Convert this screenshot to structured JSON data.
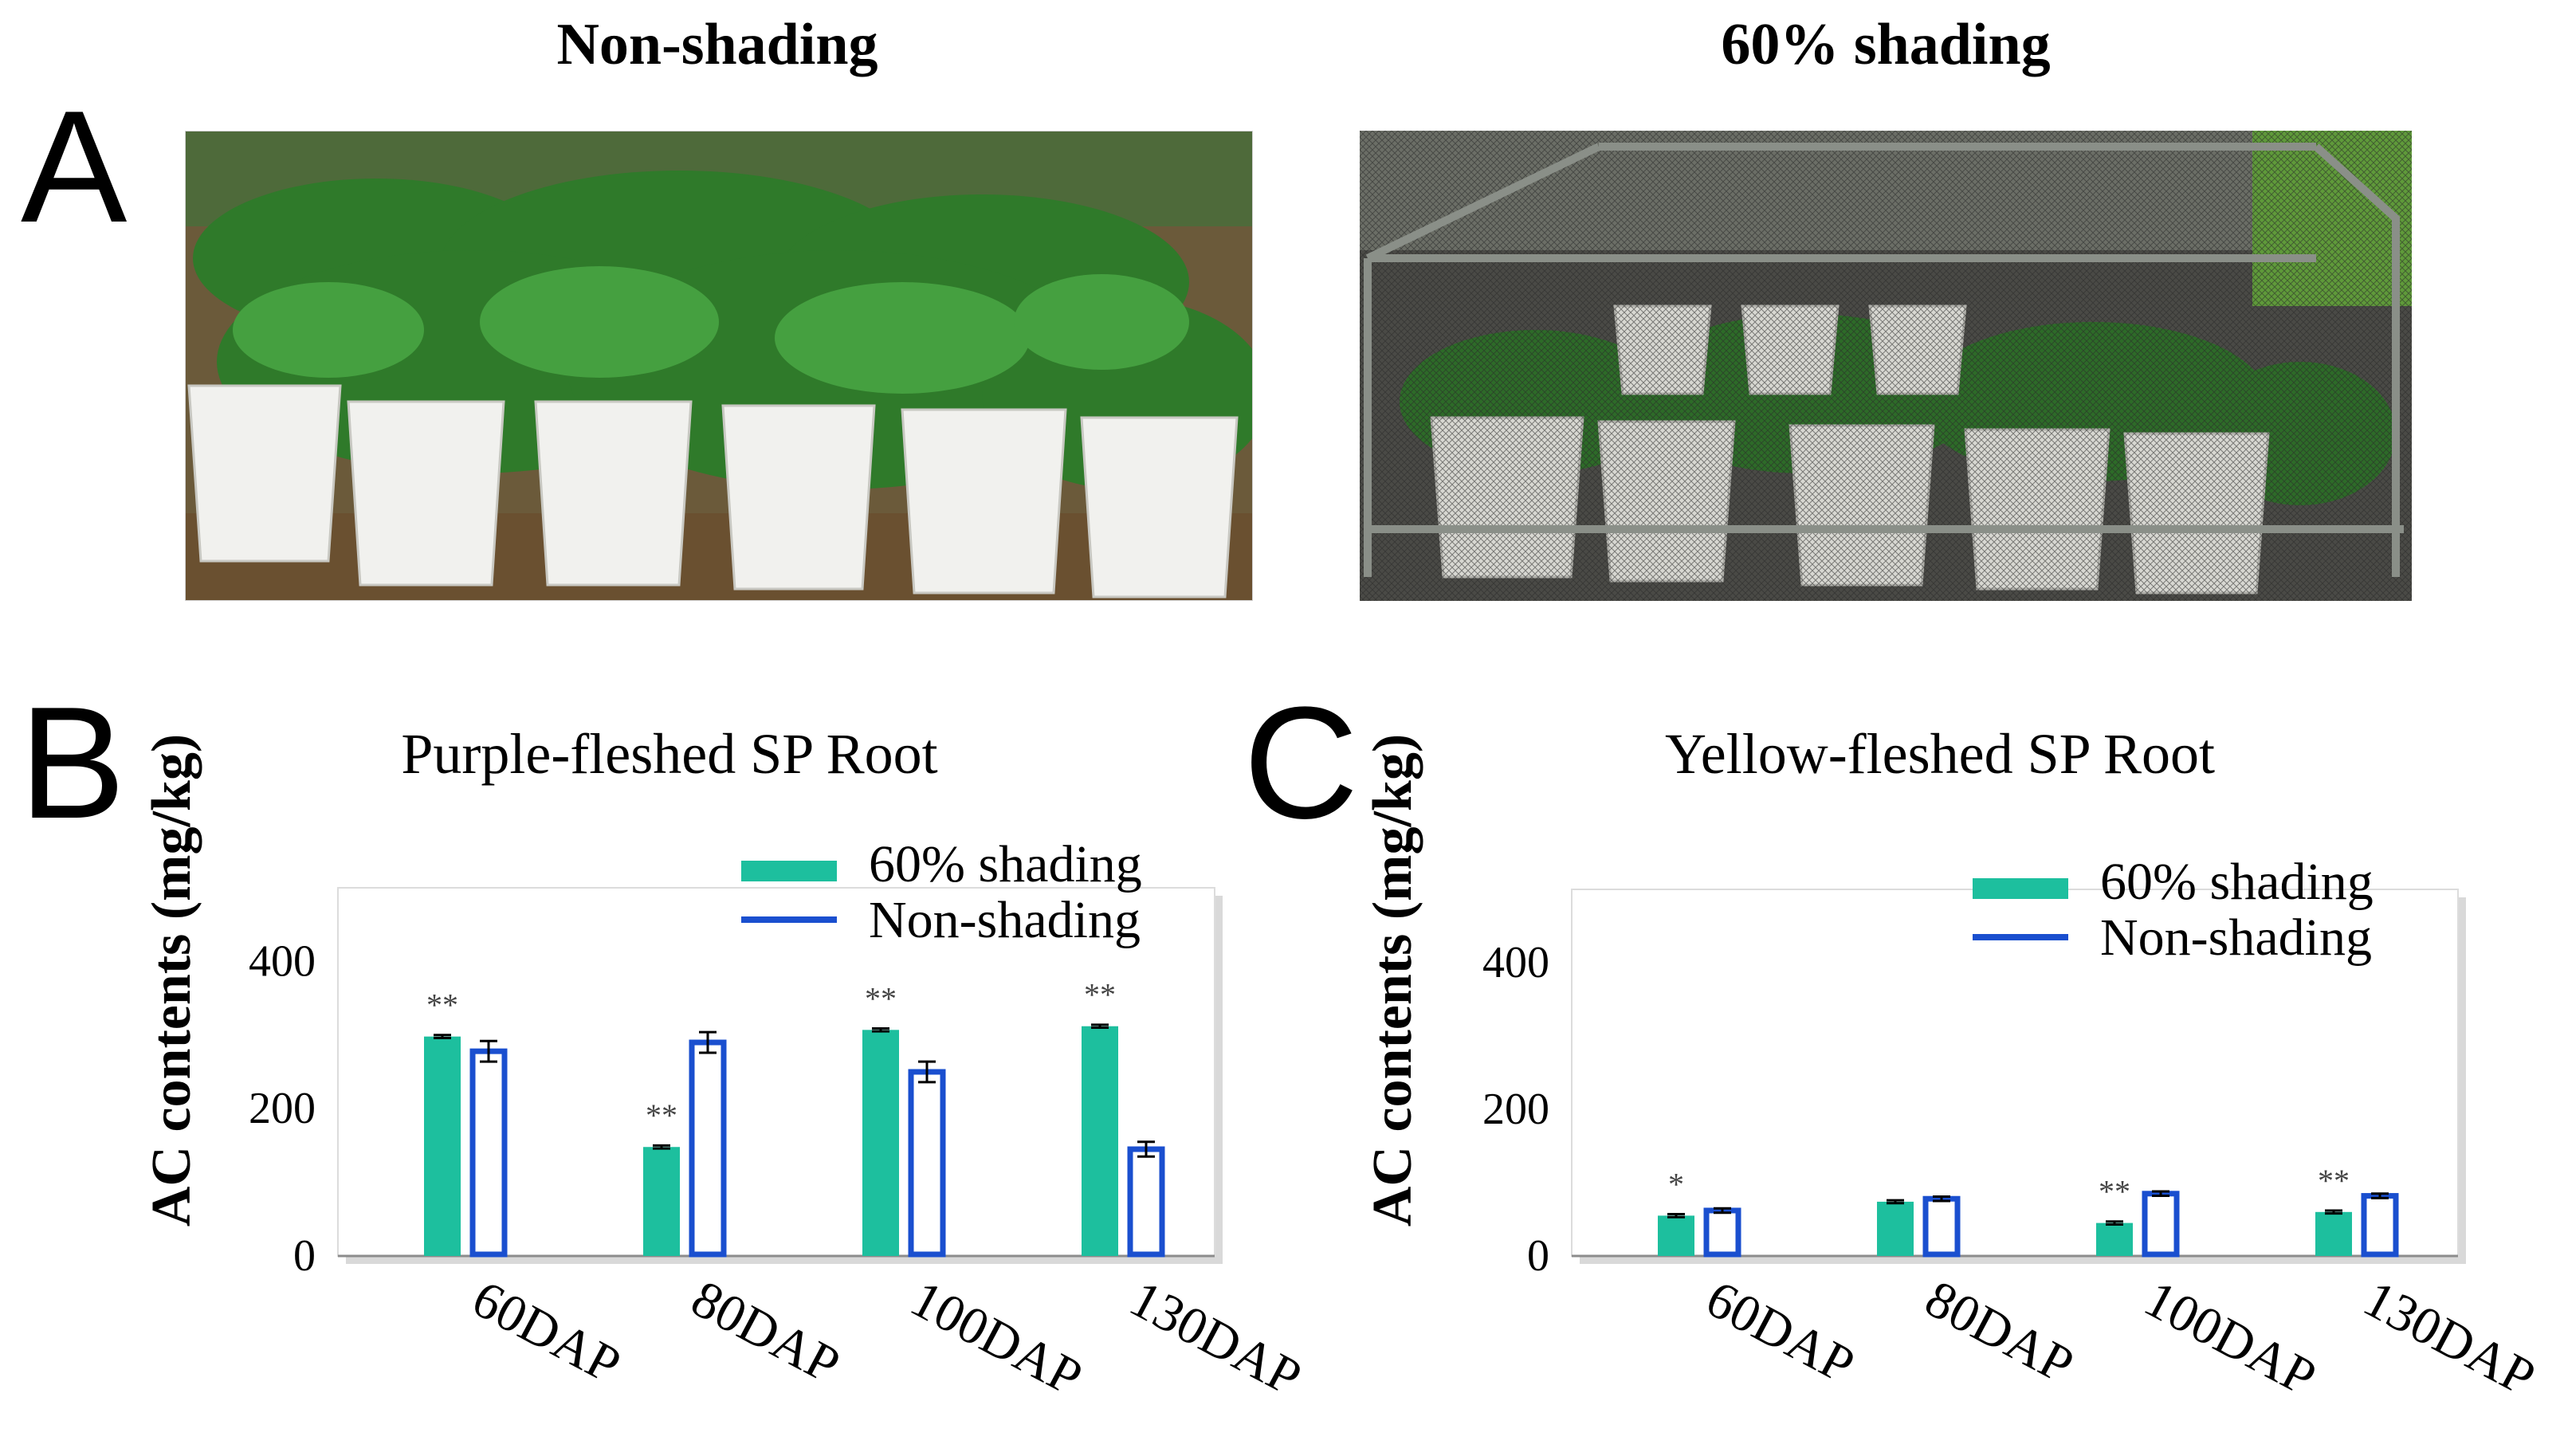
{
  "panels": {
    "a": {
      "letter": "A",
      "left_title": "Non-shading",
      "right_title": "60% shading"
    },
    "b": {
      "letter": "B"
    },
    "c": {
      "letter": "C"
    }
  },
  "colors": {
    "shading": "#1dbf9e",
    "non_shading": "#1a4fcf"
  },
  "chart_data": [
    {
      "type": "bar",
      "title": "Purple-fleshed SP Root",
      "ylabel": "AC contents (mg/kg)",
      "xlabel": "",
      "categories": [
        "60DAP",
        "80DAP",
        "100DAP",
        "130DAP"
      ],
      "series": [
        {
          "name": "60% shading",
          "values": [
            298,
            148,
            307,
            312
          ],
          "errors": [
            2,
            2,
            2,
            2
          ]
        },
        {
          "name": "Non-shading",
          "values": [
            278,
            290,
            250,
            145
          ],
          "errors": [
            14,
            14,
            14,
            10
          ]
        }
      ],
      "significance": [
        "**",
        "**",
        "**",
        "**"
      ],
      "yticks": [
        0,
        200,
        400
      ],
      "ylim": [
        0,
        500
      ],
      "legend": "top-right",
      "grid": false
    },
    {
      "type": "bar",
      "title": "Yellow-fleshed SP Root",
      "ylabel": "AC contents (mg/kg)",
      "xlabel": "",
      "categories": [
        "60DAP",
        "80DAP",
        "100DAP",
        "130DAP"
      ],
      "series": [
        {
          "name": "60% shading",
          "values": [
            55,
            74,
            45,
            60
          ],
          "errors": [
            2,
            2,
            2,
            2
          ]
        },
        {
          "name": "Non-shading",
          "values": [
            62,
            78,
            85,
            82
          ],
          "errors": [
            3,
            3,
            3,
            3
          ]
        }
      ],
      "significance": [
        "*",
        "",
        "**",
        "**"
      ],
      "yticks": [
        0,
        200,
        400
      ],
      "ylim": [
        0,
        500
      ],
      "legend": "top-right",
      "grid": false
    }
  ]
}
